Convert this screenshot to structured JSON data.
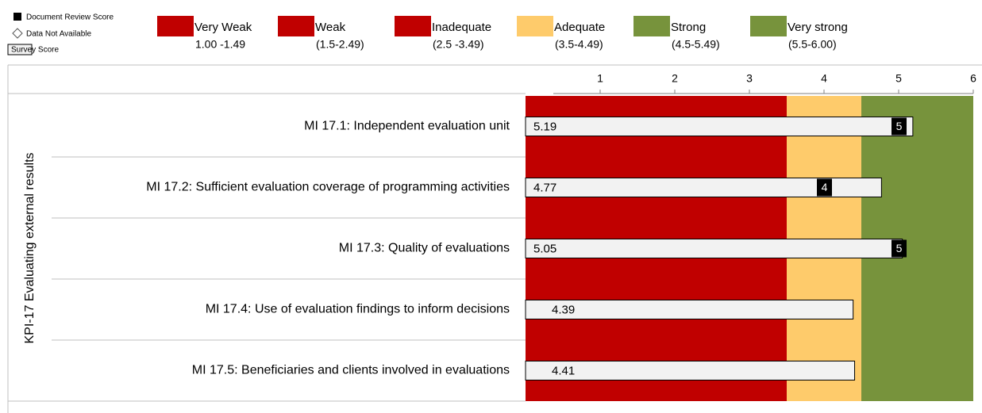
{
  "chart_data": {
    "type": "bar",
    "axis_title": "KPI-17 Evaluating external results",
    "categories": [
      "MI 17.1: Independent  evaluation unit",
      "MI 17.2: Sufficient evaluation coverage of programming activities",
      "MI 17.3: Quality of evaluations",
      "MI 17.4: Use of evaluation findings to inform decisions",
      "MI 17.5: Beneficiaries and clients involved in evaluations"
    ],
    "series": [
      {
        "name": "Survey Score",
        "color": "#f2f2f2",
        "values": [
          5.19,
          4.77,
          5.05,
          4.39,
          4.41
        ]
      },
      {
        "name": "Document Review Score",
        "color": "#000000",
        "values": [
          5,
          4,
          5,
          null,
          null
        ]
      }
    ],
    "not_available_label": "Data Not Available",
    "rating_legend": [
      {
        "name": "Very Weak",
        "range": "1.00 -1.49",
        "color": "#c00000"
      },
      {
        "name": "Weak",
        "range": "(1.5-2.49)",
        "color": "#c00000"
      },
      {
        "name": "Inadequate",
        "range": "(2.5 -3.49)",
        "color": "#c00000"
      },
      {
        "name": "Adequate",
        "range": "(3.5-4.49)",
        "color": "#fecb6b"
      },
      {
        "name": "Strong",
        "range": "(4.5-5.49)",
        "color": "#77933c"
      },
      {
        "name": "Very strong",
        "range": "(5.5-6.00)",
        "color": "#77933c"
      }
    ],
    "bands": [
      {
        "start": 0,
        "end": 3.5,
        "color": "#c00000"
      },
      {
        "start": 3.5,
        "end": 4.5,
        "color": "#fecb6b"
      },
      {
        "start": 4.5,
        "end": 6,
        "color": "#77933c"
      }
    ],
    "xlim": [
      0,
      6
    ],
    "xticks": [
      1,
      2,
      3,
      4,
      5,
      6
    ]
  }
}
